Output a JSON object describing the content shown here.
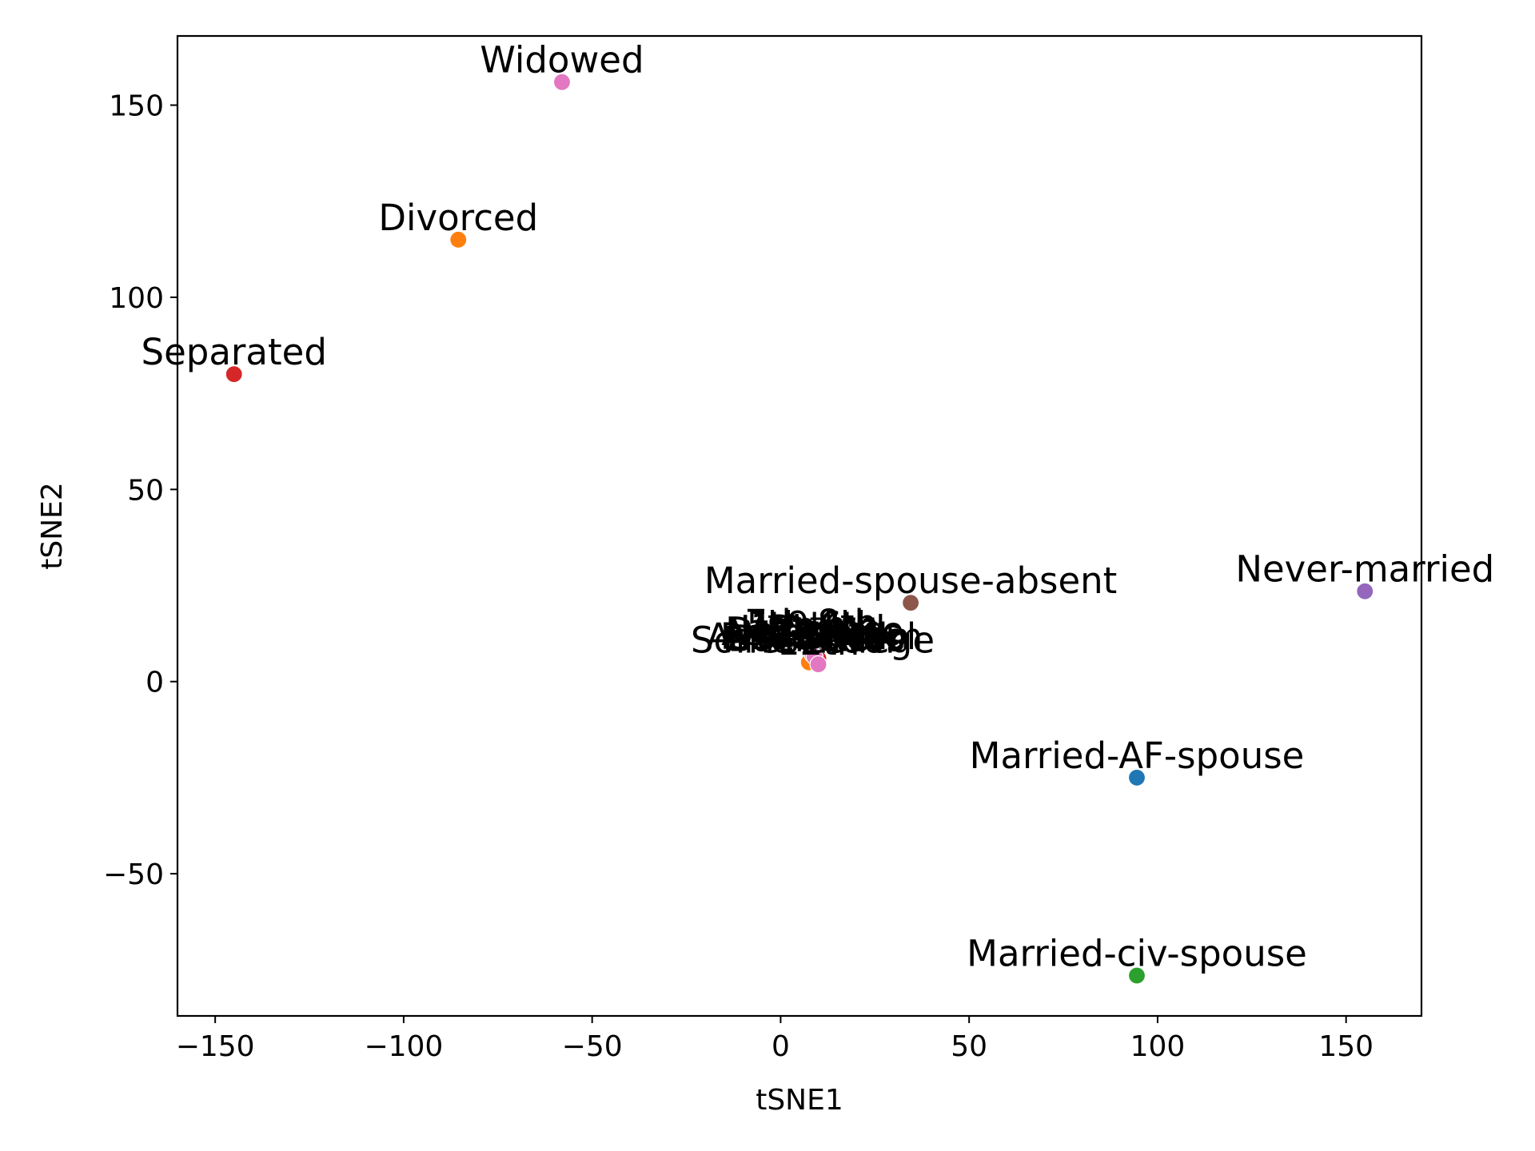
{
  "chart_data": {
    "type": "scatter",
    "xlabel": "tSNE1",
    "ylabel": "tSNE2",
    "xlim": [
      -160,
      170
    ],
    "ylim": [
      -87,
      168
    ],
    "xticks": [
      {
        "value": -150,
        "label": "−150"
      },
      {
        "value": -100,
        "label": "−100"
      },
      {
        "value": -50,
        "label": "−50"
      },
      {
        "value": 0,
        "label": "0"
      },
      {
        "value": 50,
        "label": "50"
      },
      {
        "value": 100,
        "label": "100"
      },
      {
        "value": 150,
        "label": "150"
      }
    ],
    "yticks": [
      {
        "value": -50,
        "label": "−50"
      },
      {
        "value": 0,
        "label": "0"
      },
      {
        "value": 50,
        "label": "50"
      },
      {
        "value": 100,
        "label": "100"
      },
      {
        "value": 150,
        "label": "150"
      }
    ],
    "grid": false,
    "points": [
      {
        "label": "Married-AF-spouse",
        "x": 94.5,
        "y": -25,
        "color": "#1f77b4"
      },
      {
        "label": "Divorced",
        "x": -85.5,
        "y": 115,
        "color": "#ff7f0e"
      },
      {
        "label": "Married-civ-spouse",
        "x": 94.5,
        "y": -76.5,
        "color": "#2ca02c"
      },
      {
        "label": "Separated",
        "x": -145,
        "y": 80,
        "color": "#d62728"
      },
      {
        "label": "Never-married",
        "x": 155,
        "y": 23.5,
        "color": "#9467bd"
      },
      {
        "label": "Married-spouse-absent",
        "x": 34.5,
        "y": 20.5,
        "color": "#8c564b"
      },
      {
        "label": "Widowed",
        "x": -58,
        "y": 156,
        "color": "#e377c2"
      },
      {
        "label": "Some-college",
        "x": 8.5,
        "y": 5,
        "color": "#17becf"
      },
      {
        "label": "Assoc-acdm",
        "x": 9,
        "y": 6,
        "color": "#bcbd22"
      },
      {
        "label": "Assoc-voc",
        "x": 8,
        "y": 7,
        "color": "#7f7f7f"
      },
      {
        "label": "Bachelors",
        "x": 9.5,
        "y": 5.5,
        "color": "#e377c2"
      },
      {
        "label": "Masters",
        "x": 8,
        "y": 6.5,
        "color": "#8c564b"
      },
      {
        "label": "Doctorate",
        "x": 9,
        "y": 7.5,
        "color": "#9467bd"
      },
      {
        "label": "Prof-school",
        "x": 10,
        "y": 6,
        "color": "#d62728"
      },
      {
        "label": "HS-grad",
        "x": 8.5,
        "y": 8,
        "color": "#2ca02c"
      },
      {
        "label": "Preschool",
        "x": 7.5,
        "y": 5,
        "color": "#ff7f0e"
      },
      {
        "label": "1st-4th",
        "x": 9,
        "y": 8.5,
        "color": "#1f77b4"
      },
      {
        "label": "5th-6th",
        "x": 8.5,
        "y": 9,
        "color": "#17becf"
      },
      {
        "label": "7th-8th",
        "x": 8,
        "y": 9.5,
        "color": "#bcbd22"
      },
      {
        "label": "9th",
        "x": 9.5,
        "y": 9,
        "color": "#7f7f7f"
      },
      {
        "label": "10th",
        "x": 8.5,
        "y": 7,
        "color": "#e377c2"
      },
      {
        "label": "11th",
        "x": 9,
        "y": 6.5,
        "color": "#e377c2"
      },
      {
        "label": "12th",
        "x": 10,
        "y": 4.5,
        "color": "#e377c2"
      }
    ]
  }
}
